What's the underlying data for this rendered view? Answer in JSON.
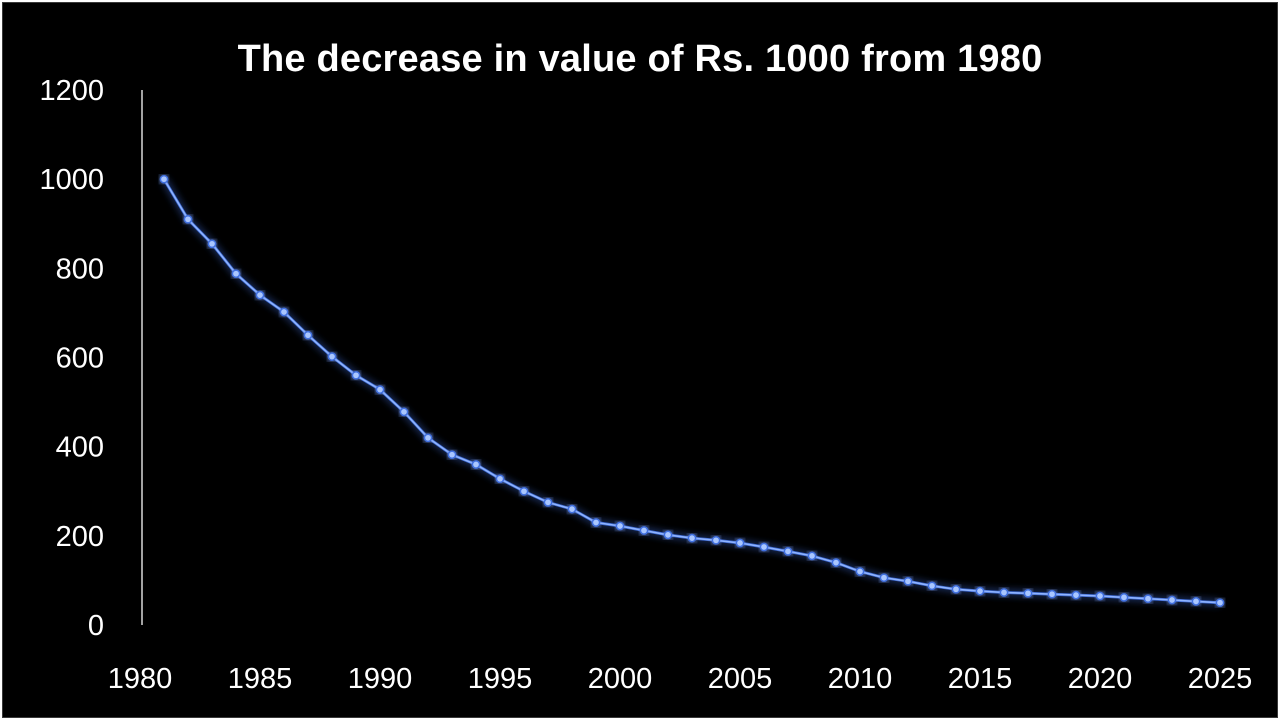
{
  "chart_data": {
    "type": "line",
    "title": "The decrease in value of Rs. 1000 from 1980",
    "xlabel": "",
    "ylabel": "",
    "xlim": [
      1980,
      2025
    ],
    "ylim": [
      0,
      1200
    ],
    "grid": false,
    "legend": "none",
    "x_ticks": [
      1980,
      1985,
      1990,
      1995,
      2000,
      2005,
      2010,
      2015,
      2020,
      2025
    ],
    "y_ticks": [
      0,
      200,
      400,
      600,
      800,
      1000,
      1200
    ],
    "series": [
      {
        "x": [
          1981,
          1982,
          1983,
          1984,
          1985,
          1986,
          1987,
          1988,
          1989,
          1990,
          1991,
          1992,
          1993,
          1994,
          1995,
          1996,
          1997,
          1998,
          1999,
          2000,
          2001,
          2002,
          2003,
          2004,
          2005,
          2006,
          2007,
          2008,
          2009,
          2010,
          2011,
          2012,
          2013,
          2014,
          2015,
          2016,
          2017,
          2018,
          2019,
          2020,
          2021,
          2022,
          2023,
          2024,
          2025
        ],
        "values": [
          1000,
          910,
          855,
          788,
          740,
          702,
          650,
          602,
          560,
          528,
          478,
          420,
          382,
          360,
          328,
          300,
          275,
          260,
          230,
          222,
          212,
          202,
          195,
          190,
          184,
          175,
          165,
          155,
          140,
          120,
          106,
          98,
          88,
          80,
          76,
          73,
          71,
          69,
          67,
          65,
          62,
          59,
          56,
          53,
          50
        ]
      }
    ],
    "colors": {
      "line": "#8fb4ff",
      "marker": "#a9c6ff",
      "glow": "#3f6fe0",
      "axis": "#d9d9d9",
      "text": "#ffffff",
      "background": "#000000"
    }
  }
}
